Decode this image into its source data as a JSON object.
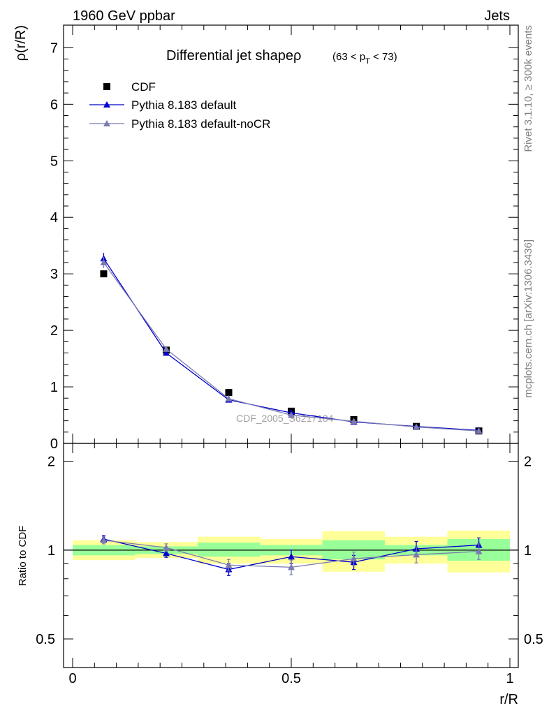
{
  "header": {
    "left_label": "1960 GeV ppbar",
    "right_label": "Jets"
  },
  "side_labels": {
    "rivet": "Rivet 3.1.10, ≥ 300k events",
    "mcplots": "mcplots.cern.ch [arXiv:1306.3436]"
  },
  "chart_data": [
    {
      "type": "line",
      "panel": "main",
      "title": "Differential jet shapeρ",
      "title_range_parts": [
        "(63 < p",
        "T",
        " < 73)"
      ],
      "ylabel": "ρ(r/R)",
      "xlabel": "r/R",
      "xlim": [
        0,
        1
      ],
      "ylim": [
        0,
        7.4
      ],
      "yticks": [
        0,
        1,
        2,
        3,
        4,
        5,
        6,
        7
      ],
      "ytick_labels": [
        "0",
        "1",
        "2",
        "3",
        "4",
        "5",
        "6",
        "7"
      ],
      "watermark": "CDF_2005_S6217184",
      "legend_position": "top-left",
      "x": [
        0.071,
        0.214,
        0.357,
        0.5,
        0.643,
        0.786,
        0.929
      ],
      "series": [
        {
          "name": "CDF",
          "marker": "square",
          "color": "#000000",
          "values": [
            3.0,
            1.65,
            0.9,
            0.57,
            0.42,
            0.3,
            0.22
          ]
        },
        {
          "name": "Pythia 8.183 default",
          "marker": "triangle",
          "color": "#0000cc",
          "values": [
            3.27,
            1.6,
            0.77,
            0.54,
            0.38,
            0.3,
            0.23
          ],
          "errors": [
            0.1,
            0.04,
            0.03,
            0.02,
            0.02,
            0.015,
            0.01
          ]
        },
        {
          "name": "Pythia 8.183 default-noCR",
          "marker": "triangle",
          "color": "#7b7bb0",
          "values": [
            3.2,
            1.67,
            0.79,
            0.5,
            0.39,
            0.29,
            0.22
          ],
          "errors": [
            0.1,
            0.04,
            0.03,
            0.02,
            0.02,
            0.015,
            0.01
          ]
        }
      ]
    },
    {
      "type": "line",
      "panel": "ratio",
      "ylabel": "Ratio to CDF",
      "xlabel": "r/R",
      "xlim": [
        0,
        1
      ],
      "ylim": [
        0.4,
        2.3
      ],
      "yscale": "log",
      "yticks": [
        0.5,
        1,
        2
      ],
      "ytick_labels": [
        "0.5",
        "1",
        "2"
      ],
      "xticks": [
        0,
        0.5,
        1
      ],
      "xtick_labels": [
        "0",
        "0.5",
        "1"
      ],
      "x": [
        0.071,
        0.214,
        0.357,
        0.5,
        0.643,
        0.786,
        0.929
      ],
      "bins": [
        [
          0,
          0.143
        ],
        [
          0.143,
          0.286
        ],
        [
          0.286,
          0.429
        ],
        [
          0.429,
          0.571
        ],
        [
          0.571,
          0.714
        ],
        [
          0.714,
          0.857
        ],
        [
          0.857,
          1.0
        ]
      ],
      "band_inner": [
        [
          0.96,
          1.04
        ],
        [
          0.97,
          1.03
        ],
        [
          0.95,
          1.06
        ],
        [
          0.96,
          1.04
        ],
        [
          0.93,
          1.08
        ],
        [
          0.96,
          1.04
        ],
        [
          0.92,
          1.09
        ]
      ],
      "band_outer": [
        [
          0.925,
          1.08
        ],
        [
          0.94,
          1.065
        ],
        [
          0.9,
          1.11
        ],
        [
          0.9,
          1.09
        ],
        [
          0.845,
          1.16
        ],
        [
          0.9,
          1.11
        ],
        [
          0.84,
          1.165
        ]
      ],
      "series": [
        {
          "name": "Pythia 8.183 default",
          "color": "#0000cc",
          "values": [
            1.09,
            0.975,
            0.86,
            0.95,
            0.91,
            1.01,
            1.04
          ],
          "errors": [
            0.03,
            0.03,
            0.04,
            0.05,
            0.05,
            0.06,
            0.06
          ]
        },
        {
          "name": "Pythia 8.183 default-noCR",
          "color": "#7b7bb0",
          "values": [
            1.08,
            1.02,
            0.89,
            0.875,
            0.935,
            0.965,
            0.99
          ],
          "errors": [
            0.03,
            0.03,
            0.04,
            0.05,
            0.05,
            0.06,
            0.06
          ]
        }
      ]
    }
  ]
}
